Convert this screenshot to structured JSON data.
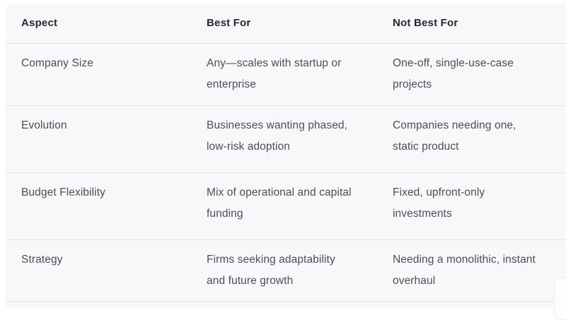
{
  "colors": {
    "page_bg": "#ffffff",
    "card_bg": "#f7f8f9",
    "divider": "#e3e4e8",
    "header_text": "#27272d",
    "body_text": "#4d4e56"
  },
  "table": {
    "columns": [
      {
        "key": "aspect",
        "label": "Aspect"
      },
      {
        "key": "best_for",
        "label": "Best For"
      },
      {
        "key": "not_best_for",
        "label": "Not Best For"
      }
    ],
    "rows": [
      {
        "aspect": "Company Size",
        "best_for": "Any—scales with startup or\nenterprise",
        "not_best_for": "One-off, single-use-case\nprojects"
      },
      {
        "aspect": "Evolution",
        "best_for": "Businesses wanting phased,\nlow-risk adoption",
        "not_best_for": "Companies needing one,\nstatic product"
      },
      {
        "aspect": "Budget Flexibility",
        "best_for": "Mix of operational and capital\nfunding",
        "not_best_for": "Fixed, upfront-only\ninvestments"
      },
      {
        "aspect": "Strategy",
        "best_for": "Firms seeking adaptability\nand future growth",
        "not_best_for": "Needing a monolithic, instant\noverhaul"
      }
    ]
  }
}
